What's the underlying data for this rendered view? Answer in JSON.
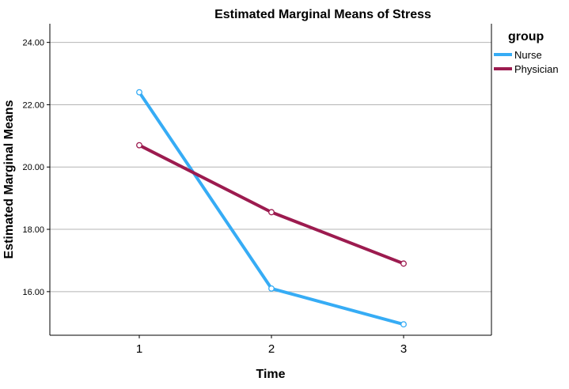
{
  "chart_data": {
    "type": "line",
    "title": "Estimated Marginal Means of Stress",
    "xlabel": "Time",
    "ylabel": "Estimated Marginal Means",
    "categories": [
      "1",
      "2",
      "3"
    ],
    "y_ticks": [
      "16.00",
      "18.00",
      "20.00",
      "22.00",
      "24.00"
    ],
    "ylim": [
      14.6,
      24.6
    ],
    "grid": "horizontal",
    "legend": {
      "title": "group",
      "placement": "top-right"
    },
    "series": [
      {
        "name": "Nurse",
        "values": [
          22.4,
          16.1,
          14.95
        ],
        "color": "#36acf5"
      },
      {
        "name": "Physician",
        "values": [
          20.7,
          18.55,
          16.9
        ],
        "color": "#9c1b4f"
      }
    ]
  }
}
